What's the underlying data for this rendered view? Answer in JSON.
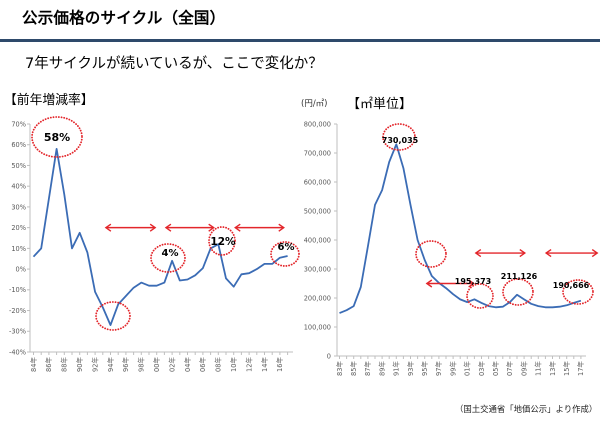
{
  "header": {
    "title": "公示価格のサイクル（全国）",
    "subtitle": "7年サイクルが続いているが、ここで変化か？"
  },
  "source": "（国土交通省「地価公示」より作成）",
  "colors": {
    "series_line": "#3b6cb5",
    "annotation": "#e3262b",
    "header_rule": "#2e4a6b",
    "axis": "#bfbfbf",
    "tick_label": "#595959"
  },
  "chart_data": [
    {
      "type": "line",
      "title": "【前年増減率】",
      "xlabel": "",
      "ylabel": "",
      "x": [
        1984,
        1985,
        1986,
        1987,
        1988,
        1989,
        1990,
        1991,
        1992,
        1993,
        1994,
        1995,
        1996,
        1997,
        1998,
        1999,
        2000,
        2001,
        2002,
        2003,
        2004,
        2005,
        2006,
        2007,
        2008,
        2009,
        2010,
        2011,
        2012,
        2013,
        2014,
        2015,
        2016,
        2017
      ],
      "series": [
        {
          "name": "前年増減率 (%)",
          "values": [
            6,
            10,
            34,
            58,
            36,
            10,
            17.5,
            8,
            -11,
            -18.5,
            -27,
            -17,
            -13,
            -9,
            -6.5,
            -8,
            -8,
            -6.5,
            4,
            -5.5,
            -5,
            -3,
            0.5,
            10,
            12,
            -4.5,
            -8.5,
            -2.5,
            -2,
            0,
            2.5,
            2.5,
            5.5,
            6.3
          ]
        }
      ],
      "ylim": [
        -40,
        70
      ],
      "yticks": [
        70,
        60,
        50,
        40,
        30,
        20,
        10,
        0,
        -10,
        -20,
        -30,
        -40
      ],
      "ytick_labels": [
        "70%",
        "60%",
        "50%",
        "40%",
        "30%",
        "20%",
        "10%",
        "0%",
        "-10%",
        "-20%",
        "-30%",
        "-40%"
      ],
      "xtick_years": [
        1984,
        1986,
        1988,
        1990,
        1992,
        1994,
        1996,
        1998,
        2000,
        2002,
        2004,
        2006,
        2008,
        2010,
        2012,
        2014,
        2016
      ],
      "xtick_labels": [
        "84年",
        "86年",
        "88年",
        "90年",
        "92年",
        "94年",
        "96年",
        "98年",
        "00年",
        "02年",
        "04年",
        "06年",
        "08年",
        "10年",
        "12年",
        "14年",
        "16年"
      ],
      "grid": false,
      "legend": "none",
      "annotations": [
        {
          "type": "circle",
          "x": 1987,
          "label": "58%"
        },
        {
          "type": "circle",
          "x": 1994,
          "label": ""
        },
        {
          "type": "circle",
          "x": 2002,
          "label": "4%"
        },
        {
          "type": "circle",
          "x": 2008,
          "label": "12%"
        },
        {
          "type": "circle",
          "x": 2017,
          "label": "6%"
        }
      ],
      "cycle_arrows": [
        {
          "from": 1993.4,
          "to": 1999.8,
          "y": 20
        },
        {
          "from": 2001.2,
          "to": 2007.4,
          "y": 20
        },
        {
          "from": 2010.2,
          "to": 2016.5,
          "y": 20
        }
      ]
    },
    {
      "type": "line",
      "title": "【㎡単位】",
      "unit_label": "(円/㎡)",
      "xlabel": "",
      "ylabel": "円/㎡",
      "x": [
        1983,
        1984,
        1985,
        1986,
        1987,
        1988,
        1989,
        1990,
        1991,
        1992,
        1993,
        1994,
        1995,
        1996,
        1997,
        1998,
        1999,
        2000,
        2001,
        2002,
        2003,
        2004,
        2005,
        2006,
        2007,
        2008,
        2009,
        2010,
        2011,
        2012,
        2013,
        2014,
        2015,
        2016,
        2017
      ],
      "series": [
        {
          "name": "公示価格 (円/㎡)",
          "values": [
            148000,
            158000,
            172000,
            238000,
            378000,
            521000,
            572000,
            669000,
            730035,
            648000,
            521000,
            400000,
            331000,
            276000,
            252000,
            234000,
            213000,
            195000,
            186000,
            195373,
            183000,
            172000,
            168000,
            170000,
            186000,
            211126,
            195000,
            180000,
            172000,
            168000,
            168000,
            170000,
            175000,
            183000,
            190666
          ]
        }
      ],
      "ylim": [
        0,
        800000
      ],
      "yticks": [
        800000,
        700000,
        600000,
        500000,
        400000,
        300000,
        200000,
        100000,
        0
      ],
      "ytick_labels": [
        "800,000",
        "700,000",
        "600,000",
        "500,000",
        "400,000",
        "300,000",
        "200,000",
        "100,000",
        "0"
      ],
      "xtick_years": [
        1983,
        1985,
        1987,
        1989,
        1991,
        1993,
        1995,
        1997,
        1999,
        2001,
        2003,
        2005,
        2007,
        2009,
        2011,
        2013,
        2015,
        2017
      ],
      "xtick_labels": [
        "83年",
        "85年",
        "87年",
        "89年",
        "91年",
        "93年",
        "95年",
        "97年",
        "99年",
        "01年",
        "03年",
        "05年",
        "07年",
        "09年",
        "11年",
        "13年",
        "15年",
        "17年"
      ],
      "grid": false,
      "legend": "none",
      "annotations": [
        {
          "type": "circle",
          "x": 1991,
          "label": "730,035"
        },
        {
          "type": "circle",
          "x": 1995,
          "label": ""
        },
        {
          "type": "circle",
          "x": 2002,
          "label": "195,373"
        },
        {
          "type": "circle",
          "x": 2008,
          "label": "211,126"
        },
        {
          "type": "circle",
          "x": 2017,
          "label": "190,666"
        }
      ],
      "cycle_arrows": [
        {
          "from": 1995.3,
          "to": 2001.9,
          "y": 250000
        },
        {
          "from": 2002.2,
          "to": 2009.1,
          "y": 355000
        },
        {
          "from": 2012.1,
          "to": 2019.3,
          "y": 355000
        }
      ]
    }
  ]
}
